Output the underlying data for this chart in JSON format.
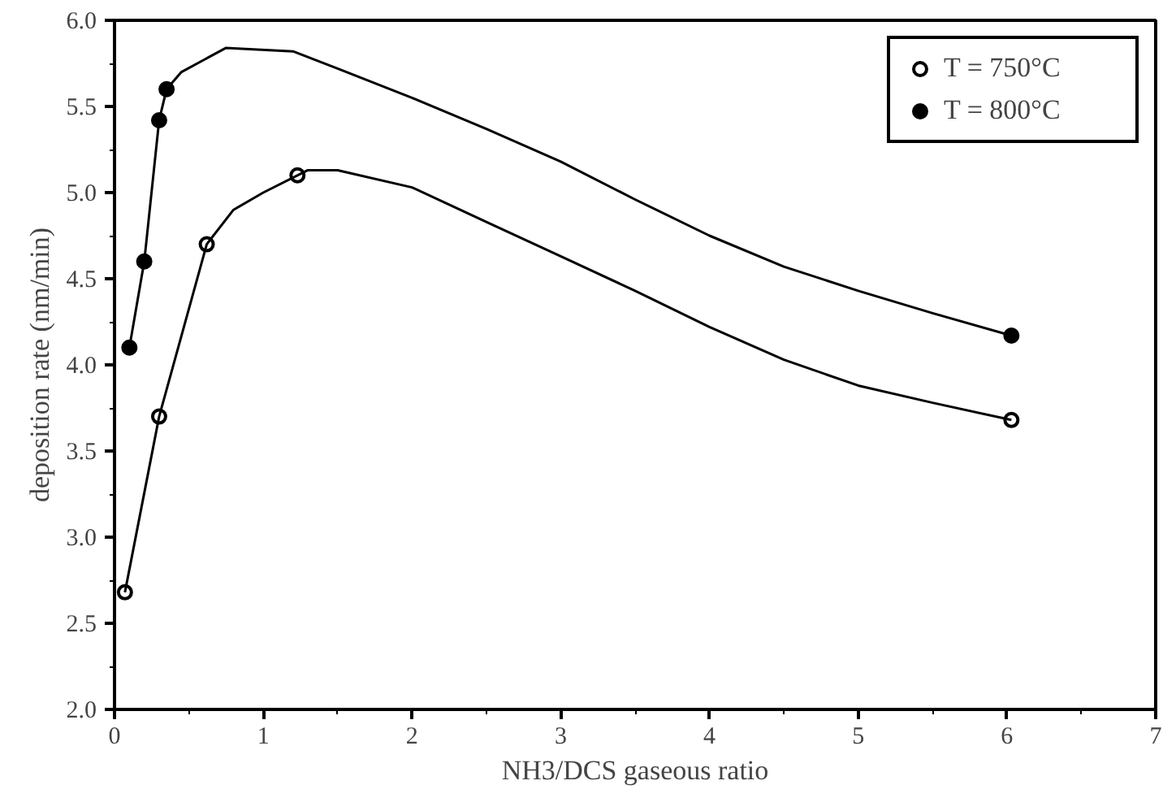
{
  "chart_data": {
    "type": "scatter",
    "xlabel": "NH3/DCS gaseous ratio",
    "ylabel": "deposition rate (nm/min)",
    "xlim": [
      0,
      7
    ],
    "xticks": [
      0,
      1,
      2,
      3,
      4,
      5,
      6,
      7
    ],
    "ylim": [
      2.0,
      6.0
    ],
    "yticks": [
      {
        "value": 2.0,
        "label": "2.0"
      },
      {
        "value": 2.5,
        "label": "2.5"
      },
      {
        "value": 3.0,
        "label": "3.0"
      },
      {
        "value": 3.5,
        "label": "3.5"
      },
      {
        "value": 4.0,
        "label": "4.0"
      },
      {
        "value": 4.5,
        "label": "4.5"
      },
      {
        "value": 5.0,
        "label": "5.0"
      },
      {
        "value": 5.5,
        "label": "5.5"
      },
      {
        "value": 6.0,
        "label": "6.0"
      }
    ],
    "grid": false,
    "legend": "top right",
    "series": [
      {
        "name": "T = 750°C",
        "marker": "circle",
        "color": "#ffffff",
        "x": [
          0.07,
          0.3,
          0.62,
          1.23,
          6.03
        ],
        "values": [
          2.68,
          3.7,
          4.7,
          5.1,
          3.68
        ]
      },
      {
        "name": "T = 800°C",
        "marker": "circle",
        "color": "#000000",
        "x": [
          0.1,
          0.2,
          0.3,
          0.35,
          6.03
        ],
        "values": [
          4.1,
          4.6,
          5.42,
          5.6,
          4.17
        ]
      },
      {
        "type": "line",
        "color": "#000000",
        "x": [
          0.07,
          0.3,
          0.62,
          0.8,
          1.0,
          1.3,
          1.5,
          2.0,
          2.5,
          3.0,
          3.5,
          4.0,
          4.5,
          5.0,
          5.5,
          6.03
        ],
        "values": [
          2.68,
          3.7,
          4.7,
          4.9,
          5.0,
          5.13,
          5.13,
          5.03,
          4.83,
          4.63,
          4.43,
          4.22,
          4.03,
          3.88,
          3.78,
          3.68
        ]
      },
      {
        "type": "line",
        "color": "#000000",
        "x": [
          0.1,
          0.2,
          0.3,
          0.35,
          0.45,
          0.6,
          0.75,
          1.2,
          1.5,
          2.0,
          2.5,
          3.0,
          3.5,
          4.0,
          4.5,
          5.0,
          5.5,
          6.03
        ],
        "values": [
          4.1,
          4.6,
          5.42,
          5.6,
          5.7,
          5.77,
          5.84,
          5.82,
          5.72,
          5.55,
          5.37,
          5.18,
          4.96,
          4.75,
          4.57,
          4.43,
          4.3,
          4.17
        ]
      }
    ]
  }
}
